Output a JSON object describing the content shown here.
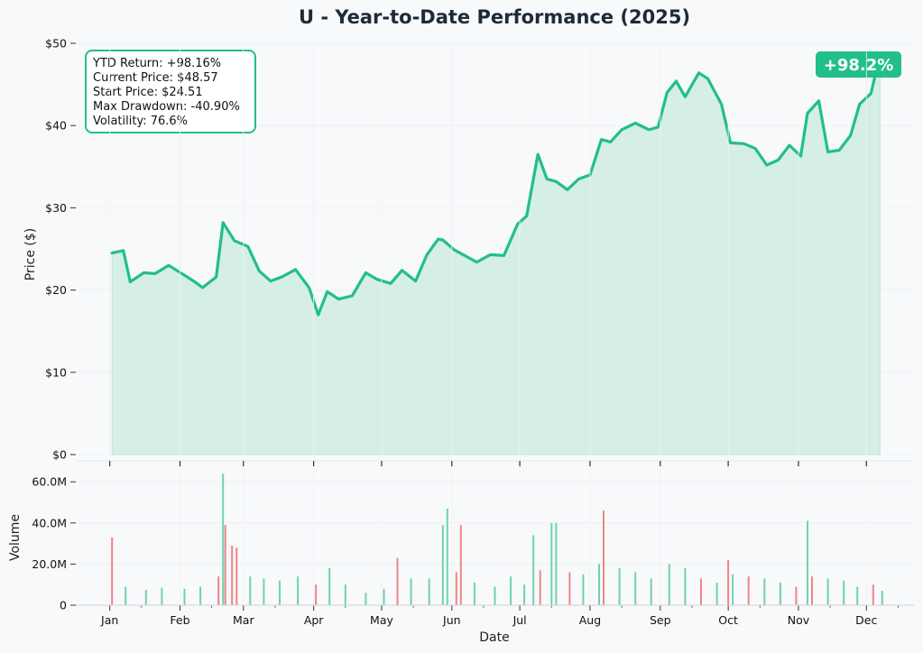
{
  "colors": {
    "accent": "#22bf88",
    "fill": "#d5efe4",
    "up": "#6ed4ab",
    "down": "#ee8585",
    "badge": "#22bf88"
  },
  "chart_data": [
    {
      "type": "line",
      "title": "U - Year-to-Date Performance (2025)",
      "ylabel": "Price ($)",
      "ylim": [
        0,
        50
      ],
      "y_ticks": [
        0,
        10,
        20,
        30,
        40,
        50
      ],
      "y_tick_labels": [
        "$0",
        "$10",
        "$20",
        "$30",
        "$40",
        "$50"
      ],
      "grid": true,
      "badge": "+98.2%",
      "stats": [
        "YTD Return: +98.16%",
        "Current Price: $48.57",
        "Start Price: $24.51",
        "Max Drawdown: -40.90%",
        "Volatility: 76.6%"
      ],
      "series": [
        {
          "x": [
            "2025-01-02",
            "2025-01-07",
            "2025-01-10",
            "2025-01-16",
            "2025-01-21",
            "2025-01-27",
            "2025-02-03",
            "2025-02-07",
            "2025-02-11",
            "2025-02-17",
            "2025-02-20",
            "2025-02-25",
            "2025-03-03",
            "2025-03-08",
            "2025-03-13",
            "2025-03-18",
            "2025-03-24",
            "2025-03-30",
            "2025-04-03",
            "2025-04-07",
            "2025-04-12",
            "2025-04-18",
            "2025-04-24",
            "2025-04-29",
            "2025-05-05",
            "2025-05-10",
            "2025-05-16",
            "2025-05-21",
            "2025-05-26",
            "2025-05-28",
            "2025-06-02",
            "2025-06-06",
            "2025-06-12",
            "2025-06-18",
            "2025-06-24",
            "2025-06-30",
            "2025-07-04",
            "2025-07-09",
            "2025-07-13",
            "2025-07-17",
            "2025-07-22",
            "2025-07-27",
            "2025-08-01",
            "2025-08-06",
            "2025-08-10",
            "2025-08-15",
            "2025-08-21",
            "2025-08-27",
            "2025-08-31",
            "2025-09-04",
            "2025-09-08",
            "2025-09-12",
            "2025-09-18",
            "2025-09-22",
            "2025-09-28",
            "2025-10-02",
            "2025-10-08",
            "2025-10-13",
            "2025-10-18",
            "2025-10-23",
            "2025-10-28",
            "2025-11-02",
            "2025-11-05",
            "2025-11-10",
            "2025-11-14",
            "2025-11-19",
            "2025-11-24",
            "2025-11-28",
            "2025-12-03",
            "2025-12-07"
          ],
          "values": [
            24.51,
            24.8,
            21.0,
            22.1,
            22.0,
            23.0,
            21.8,
            21.1,
            20.3,
            21.6,
            28.2,
            26.0,
            25.3,
            22.3,
            21.1,
            21.6,
            22.5,
            20.3,
            17.0,
            19.8,
            18.9,
            19.3,
            22.1,
            21.3,
            20.8,
            22.4,
            21.1,
            24.3,
            26.2,
            26.1,
            24.9,
            24.3,
            23.4,
            24.3,
            24.2,
            28.0,
            29.0,
            36.5,
            33.5,
            33.2,
            32.2,
            33.5,
            34.0,
            38.3,
            38.0,
            39.5,
            40.3,
            39.5,
            39.8,
            44.0,
            45.4,
            43.5,
            46.4,
            45.7,
            42.6,
            37.9,
            37.8,
            37.2,
            35.2,
            35.8,
            37.6,
            36.3,
            41.5,
            43.0,
            36.8,
            37.0,
            38.8,
            42.6,
            43.9,
            48.57
          ]
        }
      ]
    },
    {
      "type": "bar",
      "xlabel": "Date",
      "ylabel": "Volume",
      "ylim": [
        0,
        68000000
      ],
      "y_ticks": [
        0,
        20000000,
        40000000,
        60000000
      ],
      "y_tick_labels": [
        "0",
        "20.0M",
        "40.0M",
        "60.0M"
      ],
      "x_tick_labels": [
        "Jan",
        "Feb",
        "Mar",
        "Apr",
        "May",
        "Jun",
        "Jul",
        "Aug",
        "Sep",
        "Oct",
        "Nov",
        "Dec"
      ],
      "grid": true,
      "series": [
        {
          "x": [
            "2025-01-02",
            "2025-01-08",
            "2025-01-17",
            "2025-01-24",
            "2025-02-03",
            "2025-02-10",
            "2025-02-18",
            "2025-02-20",
            "2025-02-21",
            "2025-02-24",
            "2025-02-26",
            "2025-03-04",
            "2025-03-10",
            "2025-03-17",
            "2025-03-25",
            "2025-04-02",
            "2025-04-08",
            "2025-04-15",
            "2025-04-24",
            "2025-05-02",
            "2025-05-08",
            "2025-05-14",
            "2025-05-22",
            "2025-05-28",
            "2025-05-30",
            "2025-06-03",
            "2025-06-05",
            "2025-06-11",
            "2025-06-20",
            "2025-06-27",
            "2025-07-03",
            "2025-07-07",
            "2025-07-10",
            "2025-07-15",
            "2025-07-17",
            "2025-07-23",
            "2025-07-29",
            "2025-08-05",
            "2025-08-07",
            "2025-08-14",
            "2025-08-21",
            "2025-08-28",
            "2025-09-05",
            "2025-09-12",
            "2025-09-19",
            "2025-09-26",
            "2025-10-01",
            "2025-10-03",
            "2025-10-10",
            "2025-10-17",
            "2025-10-24",
            "2025-10-31",
            "2025-11-05",
            "2025-11-07",
            "2025-11-14",
            "2025-11-21",
            "2025-11-27",
            "2025-12-04",
            "2025-12-08"
          ],
          "values": [
            33000000,
            9000000,
            7500000,
            8500000,
            8000000,
            9000000,
            14000000,
            64000000,
            39000000,
            29000000,
            28000000,
            14000000,
            13000000,
            12000000,
            14000000,
            10000000,
            18000000,
            10000000,
            6000000,
            8000000,
            23000000,
            13000000,
            13000000,
            39000000,
            47000000,
            16000000,
            39000000,
            11000000,
            9000000,
            14000000,
            10000000,
            34000000,
            17000000,
            40000000,
            40000000,
            16000000,
            15000000,
            20000000,
            46000000,
            18000000,
            16000000,
            13000000,
            20000000,
            18000000,
            13000000,
            11000000,
            22000000,
            15000000,
            14000000,
            13000000,
            11000000,
            9000000,
            41000000,
            14000000,
            13000000,
            12000000,
            9000000,
            10000000,
            7000000
          ],
          "up": [
            0,
            1,
            1,
            1,
            1,
            1,
            0,
            1,
            0,
            0,
            0,
            1,
            1,
            1,
            1,
            0,
            1,
            1,
            1,
            1,
            0,
            1,
            1,
            1,
            1,
            0,
            0,
            1,
            1,
            1,
            1,
            1,
            0,
            1,
            1,
            0,
            1,
            1,
            0,
            1,
            1,
            1,
            1,
            1,
            0,
            1,
            0,
            1,
            0,
            1,
            1,
            0,
            1,
            0,
            1,
            1,
            1,
            0,
            1
          ]
        }
      ]
    }
  ]
}
